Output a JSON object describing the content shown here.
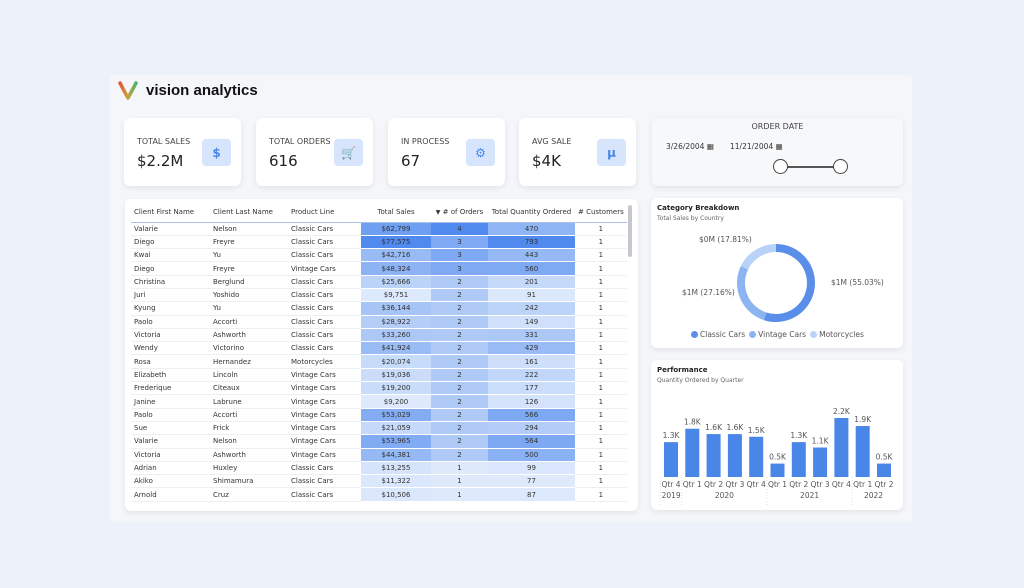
{
  "brand": {
    "name": "vision analytics"
  },
  "kpis": [
    {
      "label": "TOTAL SALES",
      "value": "$2.2M",
      "icon": "dollar-coin-icon",
      "glyph": "$"
    },
    {
      "label": "TOTAL ORDERS",
      "value": "616",
      "icon": "shopping-cart-icon",
      "glyph": "🛒"
    },
    {
      "label": "IN PROCESS",
      "value": "67",
      "icon": "gears-icon",
      "glyph": "⚙"
    },
    {
      "label": "AVG SALE",
      "value": "$4K",
      "icon": "mu-icon",
      "glyph": "µ"
    }
  ],
  "table": {
    "columns": [
      "Client First Name",
      "Client Last Name",
      "Product Line",
      "Total Sales",
      "# of Orders",
      "Total Quantity Ordered",
      "# Customers"
    ],
    "sort_column": "# of Orders",
    "sort_direction": "descending",
    "rows": [
      [
        "Valarie",
        "Nelson",
        "Classic Cars",
        "$62,799",
        "4",
        "470",
        "1"
      ],
      [
        "Diego",
        "Freyre",
        "Classic Cars",
        "$77,575",
        "3",
        "793",
        "1"
      ],
      [
        "Kwai",
        "Yu",
        "Classic Cars",
        "$42,716",
        "3",
        "443",
        "1"
      ],
      [
        "Diego",
        "Freyre",
        "Vintage Cars",
        "$48,324",
        "3",
        "560",
        "1"
      ],
      [
        "Christina",
        "Berglund",
        "Classic Cars",
        "$25,666",
        "2",
        "201",
        "1"
      ],
      [
        "Juri",
        "Yoshido",
        "Classic Cars",
        "$9,751",
        "2",
        "91",
        "1"
      ],
      [
        "Kyung",
        "Yu",
        "Classic Cars",
        "$36,144",
        "2",
        "242",
        "1"
      ],
      [
        "Paolo",
        "Accorti",
        "Classic Cars",
        "$28,922",
        "2",
        "149",
        "1"
      ],
      [
        "Victoria",
        "Ashworth",
        "Classic Cars",
        "$33,260",
        "2",
        "331",
        "1"
      ],
      [
        "Wendy",
        "Victorino",
        "Classic Cars",
        "$41,924",
        "2",
        "429",
        "1"
      ],
      [
        "Rosa",
        "Hernandez",
        "Motorcycles",
        "$20,074",
        "2",
        "161",
        "1"
      ],
      [
        "Elizabeth",
        "Lincoln",
        "Vintage Cars",
        "$19,036",
        "2",
        "222",
        "1"
      ],
      [
        "Frederique",
        "Citeaux",
        "Vintage Cars",
        "$19,200",
        "2",
        "177",
        "1"
      ],
      [
        "Janine",
        "Labrune",
        "Vintage Cars",
        "$9,200",
        "2",
        "126",
        "1"
      ],
      [
        "Paolo",
        "Accorti",
        "Vintage Cars",
        "$53,029",
        "2",
        "566",
        "1"
      ],
      [
        "Sue",
        "Frick",
        "Vintage Cars",
        "$21,059",
        "2",
        "294",
        "1"
      ],
      [
        "Valarie",
        "Nelson",
        "Vintage Cars",
        "$53,965",
        "2",
        "564",
        "1"
      ],
      [
        "Victoria",
        "Ashworth",
        "Vintage Cars",
        "$44,381",
        "2",
        "500",
        "1"
      ],
      [
        "Adrian",
        "Huxley",
        "Classic Cars",
        "$13,255",
        "1",
        "99",
        "1"
      ],
      [
        "Akiko",
        "Shimamura",
        "Classic Cars",
        "$11,322",
        "1",
        "77",
        "1"
      ],
      [
        "Arnold",
        "Cruz",
        "Classic Cars",
        "$10,506",
        "1",
        "87",
        "1"
      ]
    ]
  },
  "slicer": {
    "title": "ORDER DATE",
    "start": "3/26/2004",
    "end": "11/21/2004"
  },
  "donut": {
    "title": "Category Breakdown",
    "subtitle": "Total Sales by Country",
    "slices": [
      {
        "name": "Classic Cars",
        "label": "$1M (55.03%)",
        "pct": 55.03,
        "color": "#5b8ee8"
      },
      {
        "name": "Vintage Cars",
        "label": "$1M (27.16%)",
        "pct": 27.16,
        "color": "#8cb4f0"
      },
      {
        "name": "Motorcycles",
        "label": "$0M (17.81%)",
        "pct": 17.81,
        "color": "#b9d2f7"
      }
    ]
  },
  "chart_data": {
    "type": "bar",
    "title": "Performance",
    "subtitle": "Quantity Ordered by Quarter",
    "categories": [
      "Qtr 4",
      "Qtr 1",
      "Qtr 2",
      "Qtr 3",
      "Qtr 4",
      "Qtr 1",
      "Qtr 2",
      "Qtr 3",
      "Qtr 4",
      "Qtr 1",
      "Qtr 2"
    ],
    "years": [
      {
        "label": "2019",
        "span": 1
      },
      {
        "label": "2020",
        "span": 4
      },
      {
        "label": "2021",
        "span": 4
      },
      {
        "label": "2022",
        "span": 2
      }
    ],
    "values": [
      1.3,
      1.8,
      1.6,
      1.6,
      1.5,
      0.5,
      1.3,
      1.1,
      2.2,
      1.9,
      0.5
    ],
    "labels": [
      "1.3K",
      "1.8K",
      "1.6K",
      "1.6K",
      "1.5K",
      "0.5K",
      "1.3K",
      "1.1K",
      "2.2K",
      "1.9K",
      "0.5K"
    ],
    "color": "#4a86e8",
    "ylim": [
      0,
      2.2
    ]
  }
}
